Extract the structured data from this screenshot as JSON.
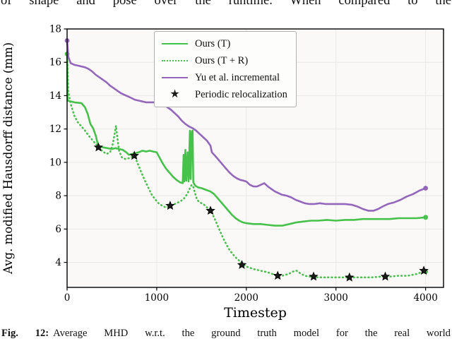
{
  "page": {
    "top_text": "of shape and pose over the runtime. When compared to the",
    "caption_prefix": "Fig. 12:",
    "caption_text": "Average MHD w.r.t. the ground truth model for the real world"
  },
  "chart_data": {
    "type": "line",
    "title": "",
    "xlabel": "Timestep",
    "ylabel": "Avg. modified Hausdorff distance (mm)",
    "xlim": [
      0,
      4200
    ],
    "ylim": [
      2.5,
      18
    ],
    "xticks": [
      0,
      1000,
      2000,
      3000,
      4000
    ],
    "yticks": [
      4,
      6,
      8,
      10,
      12,
      14,
      16,
      18
    ],
    "grid": true,
    "legend_position": "upper center",
    "colors": {
      "green": "#46c24b",
      "purple": "#9467bd",
      "star": "#1a1a1a"
    },
    "series": [
      {
        "name": "Ours (T)",
        "color": "#46c24b",
        "style": "solid",
        "dots": [
          [
            0,
            16.5
          ],
          [
            4000,
            6.7
          ]
        ],
        "points": [
          [
            0,
            16.5
          ],
          [
            5,
            13.7
          ],
          [
            80,
            13.6
          ],
          [
            160,
            13.55
          ],
          [
            200,
            13.3
          ],
          [
            230,
            12.9
          ],
          [
            260,
            12.3
          ],
          [
            290,
            12.05
          ],
          [
            320,
            11.6
          ],
          [
            340,
            11.15
          ],
          [
            360,
            10.95
          ],
          [
            400,
            10.9
          ],
          [
            450,
            10.85
          ],
          [
            500,
            10.8
          ],
          [
            540,
            10.85
          ],
          [
            580,
            10.8
          ],
          [
            620,
            10.75
          ],
          [
            660,
            10.6
          ],
          [
            690,
            10.45
          ],
          [
            720,
            10.5
          ],
          [
            760,
            10.55
          ],
          [
            800,
            10.6
          ],
          [
            840,
            10.7
          ],
          [
            880,
            10.65
          ],
          [
            920,
            10.7
          ],
          [
            960,
            10.65
          ],
          [
            1000,
            10.6
          ],
          [
            1030,
            10.3
          ],
          [
            1060,
            10.0
          ],
          [
            1100,
            9.65
          ],
          [
            1140,
            9.4
          ],
          [
            1180,
            9.15
          ],
          [
            1220,
            8.95
          ],
          [
            1260,
            8.8
          ],
          [
            1290,
            8.75
          ],
          [
            1300,
            10.45
          ],
          [
            1308,
            8.85
          ],
          [
            1320,
            10.75
          ],
          [
            1330,
            8.9
          ],
          [
            1345,
            10.6
          ],
          [
            1355,
            8.85
          ],
          [
            1370,
            11.9
          ],
          [
            1378,
            9.0
          ],
          [
            1392,
            11.85
          ],
          [
            1400,
            11.9
          ],
          [
            1408,
            8.8
          ],
          [
            1430,
            8.6
          ],
          [
            1460,
            8.5
          ],
          [
            1500,
            8.45
          ],
          [
            1550,
            8.35
          ],
          [
            1600,
            8.25
          ],
          [
            1640,
            8.1
          ],
          [
            1680,
            7.85
          ],
          [
            1720,
            7.6
          ],
          [
            1760,
            7.35
          ],
          [
            1800,
            7.1
          ],
          [
            1840,
            6.85
          ],
          [
            1880,
            6.65
          ],
          [
            1920,
            6.5
          ],
          [
            1960,
            6.4
          ],
          [
            2000,
            6.35
          ],
          [
            2080,
            6.3
          ],
          [
            2160,
            6.3
          ],
          [
            2240,
            6.25
          ],
          [
            2320,
            6.2
          ],
          [
            2400,
            6.2
          ],
          [
            2480,
            6.3
          ],
          [
            2560,
            6.4
          ],
          [
            2640,
            6.45
          ],
          [
            2720,
            6.5
          ],
          [
            2800,
            6.5
          ],
          [
            2900,
            6.55
          ],
          [
            3000,
            6.5
          ],
          [
            3100,
            6.55
          ],
          [
            3200,
            6.55
          ],
          [
            3300,
            6.6
          ],
          [
            3400,
            6.6
          ],
          [
            3500,
            6.6
          ],
          [
            3600,
            6.6
          ],
          [
            3700,
            6.65
          ],
          [
            3800,
            6.65
          ],
          [
            3900,
            6.65
          ],
          [
            4000,
            6.7
          ]
        ]
      },
      {
        "name": "Ours (T + R)",
        "color": "#46c24b",
        "style": "dotted",
        "dots": [
          [
            4000,
            3.45
          ]
        ],
        "points": [
          [
            0,
            16.5
          ],
          [
            15,
            14.2
          ],
          [
            40,
            13.5
          ],
          [
            80,
            12.8
          ],
          [
            120,
            12.4
          ],
          [
            160,
            12.15
          ],
          [
            200,
            11.9
          ],
          [
            240,
            11.6
          ],
          [
            280,
            11.35
          ],
          [
            320,
            11.1
          ],
          [
            360,
            10.85
          ],
          [
            400,
            10.65
          ],
          [
            440,
            10.5
          ],
          [
            480,
            10.6
          ],
          [
            510,
            11.1
          ],
          [
            530,
            11.7
          ],
          [
            545,
            12.2
          ],
          [
            560,
            11.5
          ],
          [
            580,
            10.7
          ],
          [
            610,
            10.3
          ],
          [
            650,
            10.2
          ],
          [
            690,
            10.25
          ],
          [
            730,
            10.35
          ],
          [
            760,
            10.3
          ],
          [
            790,
            9.9
          ],
          [
            820,
            9.5
          ],
          [
            860,
            9.0
          ],
          [
            900,
            8.55
          ],
          [
            940,
            8.1
          ],
          [
            980,
            7.8
          ],
          [
            1020,
            7.55
          ],
          [
            1060,
            7.4
          ],
          [
            1100,
            7.3
          ],
          [
            1140,
            7.35
          ],
          [
            1180,
            7.45
          ],
          [
            1220,
            7.55
          ],
          [
            1260,
            7.65
          ],
          [
            1300,
            7.8
          ],
          [
            1340,
            8.1
          ],
          [
            1370,
            8.45
          ],
          [
            1390,
            8.65
          ],
          [
            1410,
            8.5
          ],
          [
            1430,
            8.1
          ],
          [
            1450,
            7.75
          ],
          [
            1480,
            7.6
          ],
          [
            1520,
            7.5
          ],
          [
            1560,
            7.3
          ],
          [
            1600,
            7.1
          ],
          [
            1640,
            6.7
          ],
          [
            1680,
            6.2
          ],
          [
            1720,
            5.7
          ],
          [
            1760,
            5.25
          ],
          [
            1800,
            4.85
          ],
          [
            1840,
            4.55
          ],
          [
            1880,
            4.3
          ],
          [
            1920,
            4.1
          ],
          [
            1960,
            3.9
          ],
          [
            2000,
            3.75
          ],
          [
            2080,
            3.6
          ],
          [
            2160,
            3.5
          ],
          [
            2240,
            3.4
          ],
          [
            2320,
            3.25
          ],
          [
            2400,
            3.2
          ],
          [
            2470,
            3.3
          ],
          [
            2520,
            3.45
          ],
          [
            2560,
            3.5
          ],
          [
            2600,
            3.35
          ],
          [
            2650,
            3.2
          ],
          [
            2700,
            3.15
          ],
          [
            2800,
            3.1
          ],
          [
            2900,
            3.1
          ],
          [
            3000,
            3.1
          ],
          [
            3100,
            3.1
          ],
          [
            3200,
            3.1
          ],
          [
            3300,
            3.1
          ],
          [
            3400,
            3.1
          ],
          [
            3500,
            3.15
          ],
          [
            3600,
            3.15
          ],
          [
            3700,
            3.2
          ],
          [
            3800,
            3.2
          ],
          [
            3900,
            3.3
          ],
          [
            3950,
            3.4
          ],
          [
            4000,
            3.45
          ]
        ]
      },
      {
        "name": "Yu et al. incremental",
        "color": "#9467bd",
        "style": "solid",
        "dots": [
          [
            0,
            17.3
          ],
          [
            4000,
            8.45
          ]
        ],
        "points": [
          [
            0,
            17.3
          ],
          [
            15,
            16.3
          ],
          [
            40,
            15.95
          ],
          [
            80,
            15.85
          ],
          [
            120,
            15.8
          ],
          [
            160,
            15.75
          ],
          [
            200,
            15.7
          ],
          [
            240,
            15.6
          ],
          [
            280,
            15.45
          ],
          [
            320,
            15.25
          ],
          [
            360,
            15.1
          ],
          [
            400,
            14.95
          ],
          [
            440,
            14.8
          ],
          [
            480,
            14.6
          ],
          [
            520,
            14.45
          ],
          [
            560,
            14.3
          ],
          [
            600,
            14.15
          ],
          [
            640,
            14.05
          ],
          [
            680,
            13.95
          ],
          [
            720,
            13.85
          ],
          [
            760,
            13.75
          ],
          [
            800,
            13.7
          ],
          [
            840,
            13.65
          ],
          [
            880,
            13.6
          ],
          [
            960,
            13.6
          ],
          [
            1000,
            13.6
          ],
          [
            1040,
            13.55
          ],
          [
            1080,
            13.45
          ],
          [
            1120,
            13.3
          ],
          [
            1160,
            13.15
          ],
          [
            1200,
            12.95
          ],
          [
            1240,
            12.75
          ],
          [
            1280,
            12.5
          ],
          [
            1320,
            12.3
          ],
          [
            1360,
            12.15
          ],
          [
            1400,
            12.05
          ],
          [
            1440,
            11.9
          ],
          [
            1480,
            11.7
          ],
          [
            1520,
            11.5
          ],
          [
            1560,
            11.3
          ],
          [
            1600,
            11.0
          ],
          [
            1615,
            10.6
          ],
          [
            1650,
            10.4
          ],
          [
            1690,
            10.15
          ],
          [
            1730,
            9.9
          ],
          [
            1770,
            9.65
          ],
          [
            1810,
            9.4
          ],
          [
            1850,
            9.2
          ],
          [
            1890,
            9.05
          ],
          [
            1930,
            8.95
          ],
          [
            1970,
            8.9
          ],
          [
            2000,
            8.85
          ],
          [
            2040,
            8.65
          ],
          [
            2080,
            8.55
          ],
          [
            2120,
            8.55
          ],
          [
            2160,
            8.65
          ],
          [
            2200,
            8.75
          ],
          [
            2240,
            8.55
          ],
          [
            2280,
            8.4
          ],
          [
            2320,
            8.25
          ],
          [
            2360,
            8.15
          ],
          [
            2400,
            8.05
          ],
          [
            2450,
            8.0
          ],
          [
            2500,
            7.9
          ],
          [
            2550,
            7.75
          ],
          [
            2600,
            7.65
          ],
          [
            2650,
            7.55
          ],
          [
            2700,
            7.5
          ],
          [
            2760,
            7.5
          ],
          [
            2820,
            7.55
          ],
          [
            2880,
            7.5
          ],
          [
            2950,
            7.5
          ],
          [
            3020,
            7.5
          ],
          [
            3100,
            7.5
          ],
          [
            3180,
            7.45
          ],
          [
            3240,
            7.35
          ],
          [
            3300,
            7.2
          ],
          [
            3360,
            7.1
          ],
          [
            3420,
            7.1
          ],
          [
            3470,
            7.2
          ],
          [
            3520,
            7.35
          ],
          [
            3580,
            7.5
          ],
          [
            3650,
            7.6
          ],
          [
            3720,
            7.75
          ],
          [
            3790,
            7.95
          ],
          [
            3860,
            8.1
          ],
          [
            3930,
            8.3
          ],
          [
            4000,
            8.45
          ]
        ]
      },
      {
        "name": "Periodic relocalization",
        "color": "#1a1a1a",
        "style": "star",
        "points": [
          [
            350,
            10.9
          ],
          [
            750,
            10.4
          ],
          [
            1150,
            7.4
          ],
          [
            1600,
            7.1
          ],
          [
            1950,
            3.85
          ],
          [
            2350,
            3.2
          ],
          [
            2750,
            3.15
          ],
          [
            3150,
            3.1
          ],
          [
            3550,
            3.15
          ],
          [
            3980,
            3.5
          ]
        ]
      }
    ]
  }
}
